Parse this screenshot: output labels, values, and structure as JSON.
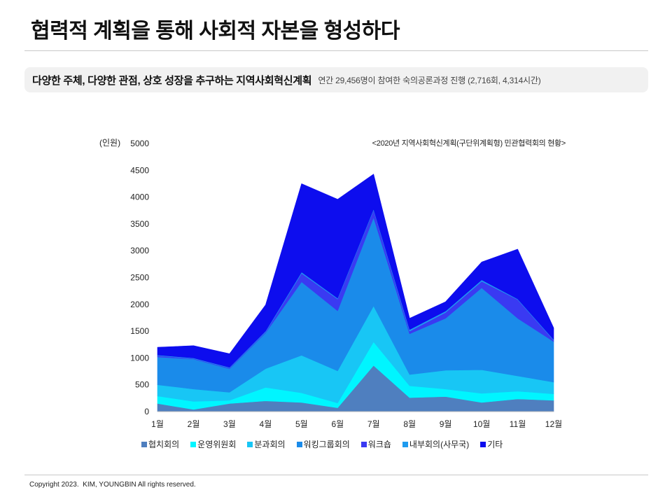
{
  "header": {
    "title": "협력적 계획을 통해 사회적 자본을 형성하다"
  },
  "summary": {
    "headline": "다양한 주체, 다양한 관점, 상호 성장을 추구하는 지역사회혁신계획",
    "note": "연간 29,456명이 참여한 숙의공론과정 진행 (2,716회, 4,314시간)"
  },
  "chart_data": {
    "type": "area",
    "stacked": true,
    "title": "<2020년 지역사회혁신계획(구단위계획형) 민관협력회의 현황>",
    "xlabel": "",
    "ylabel": "(인원)",
    "ylim": [
      0,
      5000
    ],
    "yticks": [
      0,
      500,
      1000,
      1500,
      2000,
      2500,
      3000,
      3500,
      4000,
      4500,
      5000
    ],
    "grid": false,
    "legend": "bottom",
    "categories": [
      "1월",
      "2월",
      "3월",
      "4월",
      "5월",
      "6월",
      "7월",
      "8월",
      "9월",
      "10월",
      "11월",
      "12월"
    ],
    "series": [
      {
        "name": "협치회의",
        "color": "#4f7fbf",
        "values": [
          150,
          40,
          150,
          200,
          170,
          70,
          860,
          260,
          280,
          170,
          235,
          210
        ]
      },
      {
        "name": "운영위원회",
        "color": "#00f5ff",
        "values": [
          140,
          150,
          60,
          250,
          180,
          90,
          440,
          220,
          140,
          170,
          145,
          120
        ]
      },
      {
        "name": "분과회의",
        "color": "#18c6f5",
        "values": [
          210,
          230,
          150,
          350,
          700,
          600,
          670,
          210,
          350,
          440,
          285,
          220
        ]
      },
      {
        "name": "워킹그룹회의",
        "color": "#1a8bea",
        "values": [
          520,
          560,
          440,
          670,
          1370,
          1120,
          1650,
          760,
          970,
          1530,
          1075,
          755
        ]
      },
      {
        "name": "워크숍",
        "color": "#3a3af2",
        "values": [
          25,
          10,
          15,
          15,
          160,
          220,
          140,
          50,
          110,
          120,
          350,
          25
        ]
      },
      {
        "name": "내부회의(사무국)",
        "color": "#1e9bef",
        "values": [
          10,
          10,
          10,
          15,
          20,
          15,
          15,
          30,
          25,
          25,
          10,
          15
        ]
      },
      {
        "name": "기타",
        "color": "#0d0dee",
        "values": [
          145,
          230,
          255,
          490,
          1650,
          1845,
          655,
          210,
          175,
          335,
          930,
          215
        ]
      }
    ]
  },
  "footer": {
    "copyright": "Copyright 2023.  KIM, YOUNGBIN All rights reserved."
  }
}
